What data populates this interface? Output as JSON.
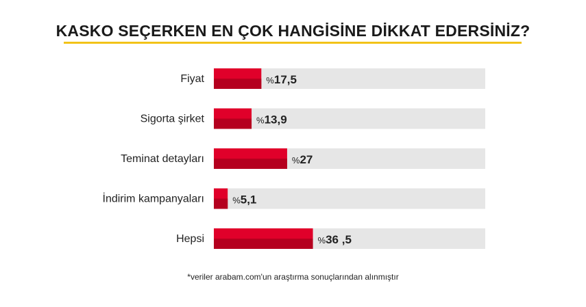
{
  "chart_data": {
    "type": "bar",
    "orientation": "horizontal",
    "title": "KASKO SEÇERKEN EN ÇOK HANGİSİNE DİKKAT EDERSİNİZ?",
    "categories": [
      "Fiyat",
      "Sigorta şirket",
      "Teminat detayları",
      "İndirim kampanyaları",
      "Hepsi"
    ],
    "values": [
      17.5,
      13.9,
      27,
      5.1,
      36.5
    ],
    "value_labels": [
      "17,5",
      "13,9",
      "27",
      "5,1",
      "36 ,5"
    ],
    "value_prefix": "%",
    "xlim": [
      0,
      100
    ],
    "grid": false,
    "legend": "none",
    "colors": {
      "bar": "#e0002a",
      "bar_shadow": "#b5001f",
      "track": "#e6e6e6",
      "title_underline": "#f2c318"
    }
  },
  "footnote": "*veriler arabam.com'un araştırma sonuçlarından alınmıştır"
}
